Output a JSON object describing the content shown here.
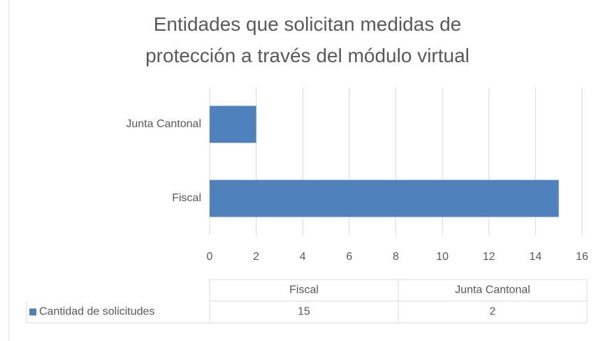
{
  "chart_data": {
    "type": "bar",
    "orientation": "horizontal",
    "title": "Entidades que solicitan medidas de protección a través del módulo virtual",
    "categories": [
      "Fiscal",
      "Junta Cantonal"
    ],
    "series": [
      {
        "name": "Cantidad de solicitudes",
        "color": "#4f81bd",
        "values": [
          15,
          2
        ]
      }
    ],
    "xlim": [
      0,
      16
    ],
    "xticks": [
      0,
      2,
      4,
      6,
      8,
      10,
      12,
      14,
      16
    ],
    "grid": true,
    "data_table": true
  }
}
